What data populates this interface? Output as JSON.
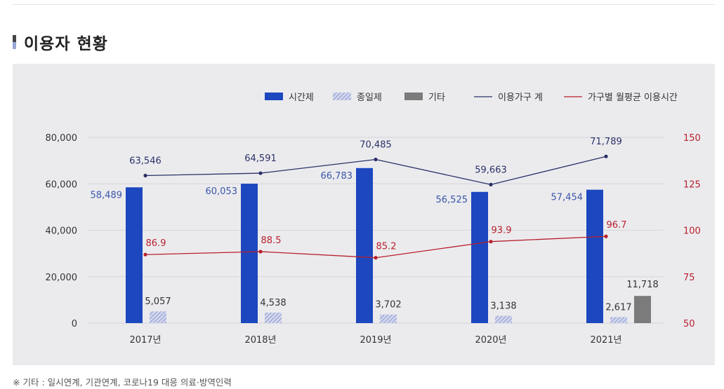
{
  "section": {
    "title": "이용자 현황"
  },
  "note": {
    "mark": "※",
    "text": "기타 : 일시연계, 기관연계, 코로나19 대응 의료·방역인력"
  },
  "colors": {
    "part_time": "#1c47bf",
    "full_time": "#aab3d9",
    "other": "#7b7b7b",
    "households_line": "#2b3067",
    "hours_line": "#b81f2c",
    "grid": "#d6d6da",
    "panel": "#ebebee"
  },
  "chart_data": {
    "type": "bar",
    "categories": [
      "2017년",
      "2018년",
      "2019년",
      "2020년",
      "2021년"
    ],
    "y_left": {
      "min": 0,
      "max": 80000,
      "ticks": [
        "0",
        "20,000",
        "40,000",
        "60,000",
        "80,000"
      ],
      "tick_values": [
        0,
        20000,
        40000,
        60000,
        80000
      ]
    },
    "y_right": {
      "min": 50,
      "max": 150,
      "ticks": [
        "50",
        "75",
        "100",
        "125",
        "150"
      ],
      "tick_values": [
        50,
        75,
        100,
        125,
        150
      ]
    },
    "grid": true,
    "legend_position": "top-right",
    "series": [
      {
        "name": "시간제",
        "kind": "bar",
        "axis": "left",
        "values": [
          58489,
          60053,
          66783,
          56525,
          57454
        ],
        "labels": [
          "58,489",
          "60,053",
          "66,783",
          "56,525",
          "57,454"
        ]
      },
      {
        "name": "종일제",
        "kind": "bar",
        "axis": "left",
        "pattern": "hatched",
        "values": [
          5057,
          4538,
          3702,
          3138,
          2617
        ],
        "labels": [
          "5,057",
          "4,538",
          "3,702",
          "3,138",
          "2,617"
        ]
      },
      {
        "name": "기타",
        "kind": "bar",
        "axis": "left",
        "values": [
          null,
          null,
          null,
          null,
          11718
        ],
        "labels": [
          "",
          "",
          "",
          "",
          "11,718"
        ]
      },
      {
        "name": "이용가구 계",
        "kind": "line",
        "axis": "left",
        "values": [
          63546,
          64591,
          70485,
          59663,
          71789
        ],
        "labels": [
          "63,546",
          "64,591",
          "70,485",
          "59,663",
          "71,789"
        ]
      },
      {
        "name": "가구별 월평균 이용시간",
        "kind": "line",
        "axis": "right",
        "values": [
          86.9,
          88.5,
          85.2,
          93.9,
          96.7
        ],
        "labels": [
          "86.9",
          "88.5",
          "85.2",
          "93.9",
          "96.7"
        ]
      }
    ]
  }
}
